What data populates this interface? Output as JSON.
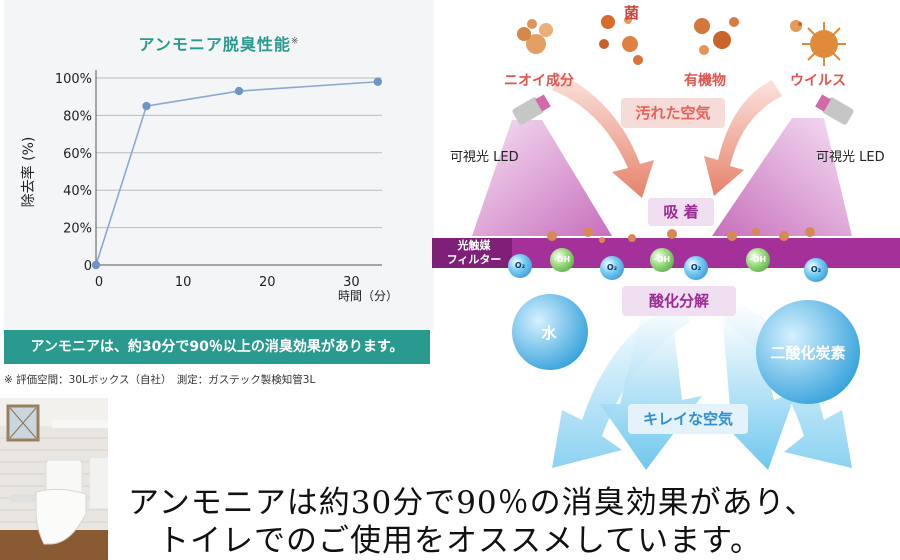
{
  "chart_data": {
    "type": "line",
    "title": "アンモニア脱臭性能",
    "title_mark": "※",
    "xlabel": "時間（分）",
    "ylabel": "除去率 (%)",
    "x": [
      0,
      6,
      17,
      33.5
    ],
    "y": [
      0,
      85,
      93,
      98
    ],
    "xticks": [
      "0",
      "10",
      "20",
      "30"
    ],
    "xtick_values": [
      0,
      10,
      20,
      30
    ],
    "yticks": [
      "0",
      "20%",
      "40%",
      "60%",
      "80%",
      "100%"
    ],
    "ytick_values": [
      0,
      20,
      40,
      60,
      80,
      100
    ],
    "xlim": [
      0,
      34
    ],
    "ylim": [
      0,
      100
    ],
    "grid": true,
    "colors": {
      "line": "#8aa9d1",
      "marker": "#6f95c8",
      "title": "#2b9a8e"
    }
  },
  "summary": "アンモニアは、約30分で90％以上の消臭効果があります。",
  "footnote": "※ 評価空間：30Lボックス（自社）　測定：ガステック製検知管3L",
  "photo": {
    "icon": "toilet-room-photo"
  },
  "headline": {
    "line1": "アンモニアは約30分で90％の消臭効果があり、",
    "line2": "トイレでのご使用をオススメしています。"
  },
  "diagram": {
    "bacteria": "菌",
    "odor": "ニオイ成分",
    "organic": "有機物",
    "virus": "ウイルス",
    "dirty_air": "汚れた空気",
    "led_left": "可視光 LED",
    "led_right": "可視光 LED",
    "adsorb": "吸 着",
    "filter_line1": "光触媒",
    "filter_line2": "フィルター",
    "oxidize": "酸化分解",
    "water": "水",
    "co2": "二酸化炭素",
    "clean_air": "キレイな空気",
    "o2": "O₂",
    "oh": "·OH",
    "colors": {
      "accent_red": "#e8615b",
      "accent_purple": "#9b2c93",
      "accent_blue": "#2f8fd1",
      "filter": "#a4309a"
    }
  }
}
